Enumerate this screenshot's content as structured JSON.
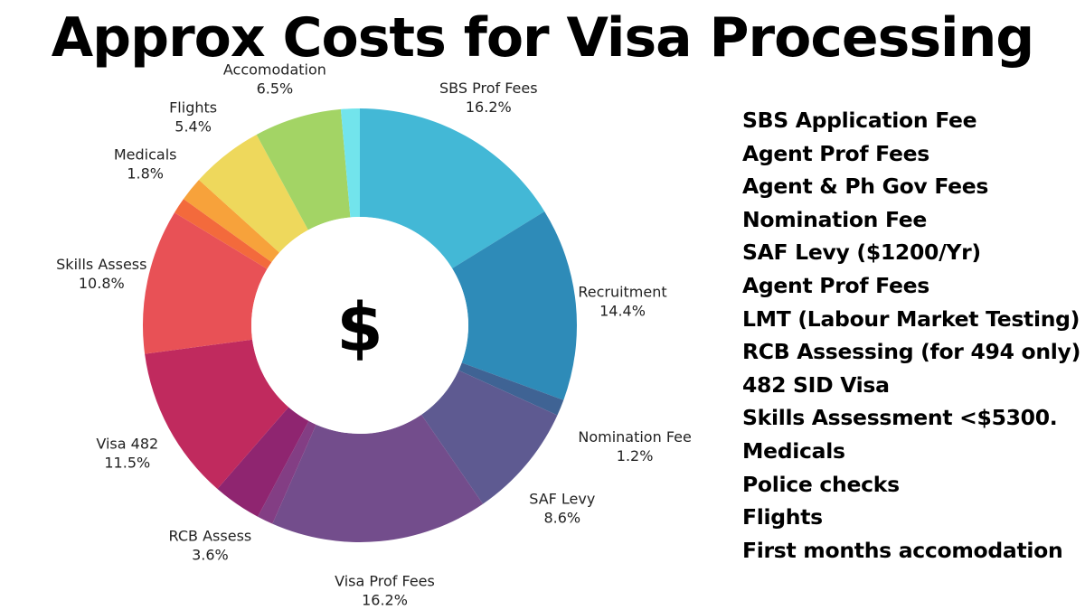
{
  "chart_data": {
    "type": "pie",
    "title": "Approx Costs for Visa Processing",
    "center_symbol": "$",
    "slices": [
      {
        "name": "SBS Prof Fees",
        "value": 16.2,
        "label": "16.2%",
        "color": "#43b8d6"
      },
      {
        "name": "Recruitment",
        "value": 14.4,
        "label": "14.4%",
        "color": "#2e8bb8"
      },
      {
        "name": "Nomination Fee",
        "value": 1.2,
        "label": "1.2%",
        "color": "#3f6394"
      },
      {
        "name": "SAF Levy",
        "value": 8.6,
        "label": "8.6%",
        "color": "#5e5a91"
      },
      {
        "name": "Visa Prof Fees",
        "value": 16.2,
        "label": "16.2%",
        "color": "#734d8c"
      },
      {
        "name": "",
        "value": 1.2,
        "label": "",
        "color": "#833e84"
      },
      {
        "name": "RCB Assess",
        "value": 3.6,
        "label": "3.6%",
        "color": "#8f2570"
      },
      {
        "name": "Visa 482",
        "value": 11.5,
        "label": "11.5%",
        "color": "#c02a5e"
      },
      {
        "name": "Skills Assess",
        "value": 10.8,
        "label": "10.8%",
        "color": "#e85156"
      },
      {
        "name": "",
        "value": 1.2,
        "label": "",
        "color": "#f36a3c"
      },
      {
        "name": "Medicals",
        "value": 1.8,
        "label": "1.8%",
        "color": "#f7a23b"
      },
      {
        "name": "Flights",
        "value": 5.4,
        "label": "5.4%",
        "color": "#eed85c"
      },
      {
        "name": "Accomodation",
        "value": 6.5,
        "label": "6.5%",
        "color": "#a3d465"
      },
      {
        "name": "",
        "value": 1.4,
        "label": "",
        "color": "#72e4ec"
      }
    ]
  },
  "cost_list": [
    "SBS Application Fee",
    "Agent Prof Fees",
    "Agent & Ph Gov Fees",
    "Nomination Fee",
    "SAF Levy ($1200/Yr)",
    "Agent Prof Fees",
    "LMT (Labour Market Testing)",
    "RCB Assessing (for 494 only)",
    "482 SID Visa",
    "Skills Assessment <$5300.",
    "Medicals",
    "Police checks",
    "Flights",
    "First months accomodation"
  ]
}
